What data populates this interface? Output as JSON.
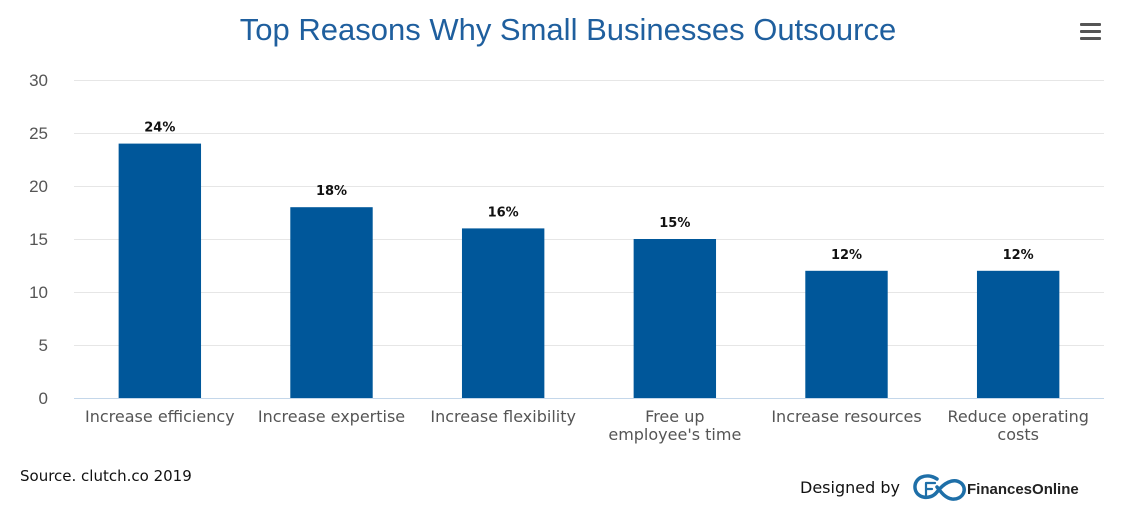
{
  "chart_data": {
    "type": "bar",
    "title": "Top Reasons Why Small Businesses Outsource",
    "categories": [
      [
        "Increase efficiency"
      ],
      [
        "Increase expertise"
      ],
      [
        "Increase flexibility"
      ],
      [
        "Free up",
        "employee's time"
      ],
      [
        "Increase resources"
      ],
      [
        "Reduce operating",
        "costs"
      ]
    ],
    "values": [
      24,
      18,
      16,
      15,
      12,
      12
    ],
    "data_labels": [
      "24%",
      "18%",
      "16%",
      "15%",
      "12%",
      "12%"
    ],
    "ylim": [
      0,
      30
    ],
    "yticks": [
      0,
      5,
      10,
      15,
      20,
      25,
      30
    ],
    "grid": true,
    "bar_color": "#00579a",
    "title_color": "#1f5f9e"
  },
  "source_text": "Source. clutch.co 2019",
  "credit": {
    "designed_by": "Designed by",
    "brand_name": "FinancesOnline"
  },
  "menu": {
    "icon": "hamburger-menu-icon"
  }
}
